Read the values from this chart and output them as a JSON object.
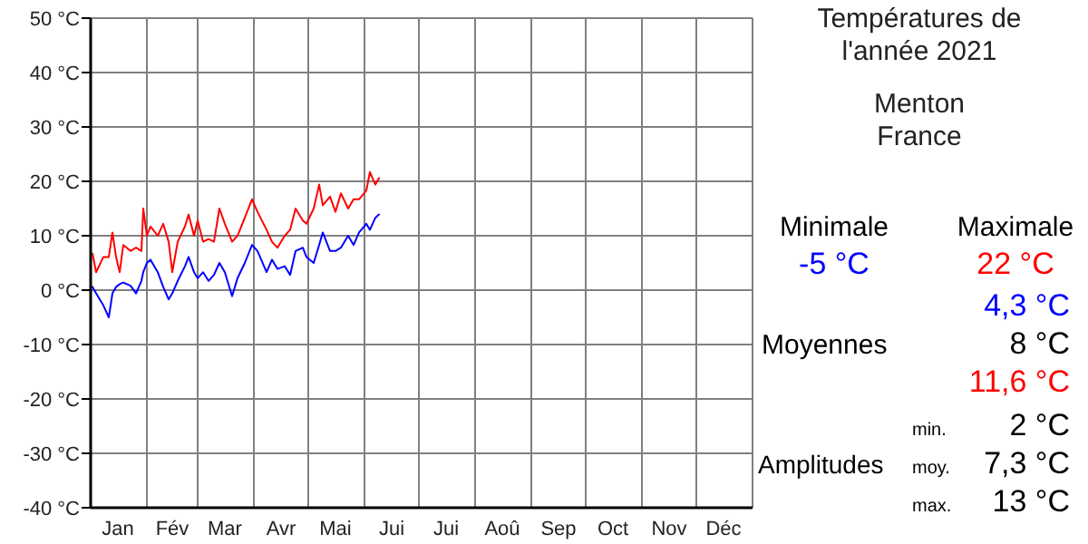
{
  "chart_data": {
    "type": "line",
    "title": "Températures de l'année 2021",
    "subtitle": "Menton\nFrance",
    "annotations": [
      "Minimale",
      "Maximale",
      "-5 °C",
      "22 °C",
      "4,3 °C",
      "Moyennes",
      "8 °C",
      "11,6 °C",
      "min.",
      "2 °C",
      "Amplitudes",
      "moy.",
      "7,3 °C",
      "max.",
      "13 °C"
    ],
    "x": [
      "2021-01-02",
      "2021-01-04",
      "2021-01-08",
      "2021-01-11",
      "2021-01-13",
      "2021-01-15",
      "2021-01-17",
      "2021-01-19",
      "2021-01-23",
      "2021-01-26",
      "2021-01-29",
      "2021-01-30",
      "2021-02-01",
      "2021-02-03",
      "2021-02-07",
      "2021-02-10",
      "2021-02-13",
      "2021-02-15",
      "2021-02-18",
      "2021-02-22",
      "2021-02-24",
      "2021-02-27",
      "2021-03-01",
      "2021-03-04",
      "2021-03-07",
      "2021-03-10",
      "2021-03-13",
      "2021-03-16",
      "2021-03-20",
      "2021-03-23",
      "2021-03-27",
      "2021-03-31",
      "2021-04-03",
      "2021-04-08",
      "2021-04-11",
      "2021-04-14",
      "2021-04-18",
      "2021-04-21",
      "2021-04-24",
      "2021-04-28",
      "2021-04-30",
      "2021-05-04",
      "2021-05-07",
      "2021-05-09",
      "2021-05-13",
      "2021-05-16",
      "2021-05-19",
      "2021-05-23",
      "2021-05-26",
      "2021-05-29",
      "2021-06-02",
      "2021-06-04",
      "2021-06-07",
      "2021-06-09"
    ],
    "series": [
      {
        "color": "#ff0000",
        "values": [
          6.7,
          3.3,
          6.1,
          6.1,
          10.6,
          6.1,
          3.3,
          8.3,
          7.2,
          7.8,
          7.2,
          15,
          10,
          11.7,
          10,
          12.2,
          8.9,
          3.3,
          8.9,
          11.7,
          13.9,
          10,
          12.8,
          8.9,
          9.4,
          8.9,
          15,
          12.2,
          8.9,
          10,
          13.3,
          16.7,
          14.4,
          11.1,
          8.9,
          7.8,
          10,
          11.1,
          15,
          12.8,
          12.2,
          15,
          19.4,
          15.6,
          17.2,
          14.4,
          17.8,
          15,
          16.7,
          16.7,
          18.3,
          21.7,
          19.4,
          20.6
        ]
      },
      {
        "color": "#0000ff",
        "values": [
          0.6,
          -0.6,
          -2.8,
          -5,
          -0.6,
          0.6,
          1.1,
          1.4,
          0.8,
          -0.6,
          1.7,
          3.3,
          5,
          5.6,
          3.3,
          0.6,
          -1.7,
          -0.6,
          1.7,
          4.4,
          6.1,
          3.3,
          2.2,
          3.3,
          1.7,
          2.8,
          5,
          3.3,
          -1.1,
          2.2,
          5,
          8.3,
          7.2,
          3.3,
          5.6,
          3.9,
          4.4,
          2.8,
          7.2,
          7.8,
          6.1,
          5,
          8.3,
          10.6,
          7.2,
          7.2,
          7.8,
          10,
          8.3,
          10.6,
          12.2,
          11.1,
          13.3,
          13.9
        ]
      }
    ],
    "xlim": [
      "2021-01-01",
      "2022-01-01"
    ],
    "xticks": [
      {
        "value": "2021-01-01",
        "label": null
      },
      {
        "value": "2021-01-16",
        "label": "Jan"
      },
      {
        "value": "2021-02-01",
        "label": null
      },
      {
        "value": "2021-02-15",
        "label": "Fév"
      },
      {
        "value": "2021-03-01",
        "label": null
      },
      {
        "value": "2021-03-16",
        "label": "Mar"
      },
      {
        "value": "2021-04-01",
        "label": null
      },
      {
        "value": "2021-04-16",
        "label": "Avr"
      },
      {
        "value": "2021-05-01",
        "label": null
      },
      {
        "value": "2021-05-16",
        "label": "Mai"
      },
      {
        "value": "2021-06-01",
        "label": null
      },
      {
        "value": "2021-06-16",
        "label": "Jui"
      },
      {
        "value": "2021-07-01",
        "label": null
      },
      {
        "value": "2021-07-16",
        "label": "Jui"
      },
      {
        "value": "2021-08-01",
        "label": null
      },
      {
        "value": "2021-08-16",
        "label": "Aoû"
      },
      {
        "value": "2021-09-01",
        "label": null
      },
      {
        "value": "2021-09-16",
        "label": "Sep"
      },
      {
        "value": "2021-10-01",
        "label": null
      },
      {
        "value": "2021-10-16",
        "label": "Oct"
      },
      {
        "value": "2021-11-01",
        "label": null
      },
      {
        "value": "2021-11-16",
        "label": "Nov"
      },
      {
        "value": "2021-12-01",
        "label": null
      },
      {
        "value": "2021-12-16",
        "label": "Déc"
      },
      {
        "value": "2022-01-01",
        "label": null
      }
    ],
    "ylim": [
      -40,
      50
    ],
    "yticks": [
      {
        "value": -40,
        "label": "-40 °C"
      },
      {
        "value": -30,
        "label": "-30 °C"
      },
      {
        "value": -20,
        "label": "-20 °C"
      },
      {
        "value": -10,
        "label": "-10 °C"
      },
      {
        "value": 0,
        "label": "0 °C"
      },
      {
        "value": 10,
        "label": "10 °C"
      },
      {
        "value": 20,
        "label": "20 °C"
      },
      {
        "value": 30,
        "label": "30 °C"
      },
      {
        "value": 40,
        "label": "40 °C"
      },
      {
        "value": 50,
        "label": "50 °C"
      }
    ],
    "grid": true,
    "line_style": "solid"
  }
}
